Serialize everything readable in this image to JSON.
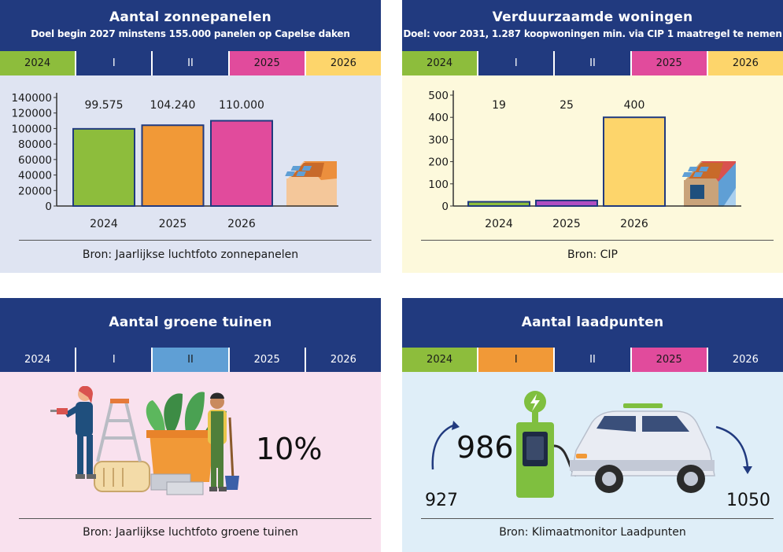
{
  "panels": {
    "solar": {
      "title": "Aantal zonnepanelen",
      "subtitle": "Doel begin 2027 minstens 155.000 panelen op Capelse daken",
      "timeline": [
        "2024",
        "I",
        "II",
        "2025",
        "2026"
      ],
      "source": "Bron: Jaarlijkse luchtfoto zonnepanelen"
    },
    "homes": {
      "title": "Verduurzaamde woningen",
      "subtitle": "Doel: voor 2031, 1.287 koopwoningen min. via CIP 1 maatregel te nemen",
      "timeline": [
        "2024",
        "I",
        "II",
        "2025",
        "2026"
      ],
      "source": "Bron: CIP"
    },
    "gardens": {
      "title": "Aantal groene tuinen",
      "timeline": [
        "2024",
        "I",
        "II",
        "2025",
        "2026"
      ],
      "value": "10%",
      "source": "Bron: Jaarlijkse luchtfoto groene tuinen"
    },
    "charging": {
      "title": "Aantal laadpunten",
      "timeline": [
        "2024",
        "I",
        "II",
        "2025",
        "2026"
      ],
      "previous": "927",
      "current": "986",
      "target": "1050",
      "source": "Bron: Klimaatmonitor Laadpunten"
    }
  },
  "colors": {
    "navy": "#213a7f",
    "green": "#8dbd3c",
    "orange": "#f19937",
    "pink": "#e14b9c",
    "yellow": "#fdd56b",
    "lightblue": "#5f9fd5"
  },
  "chart_data": [
    {
      "type": "bar",
      "title": "Aantal zonnepanelen",
      "categories": [
        "2024",
        "2025",
        "2026"
      ],
      "values": [
        99575,
        104240,
        110000
      ],
      "value_labels": [
        "99.575",
        "104.240",
        "110.000"
      ],
      "bar_colors": [
        "#8dbd3c",
        "#f19937",
        "#e14b9c"
      ],
      "yticks": [
        0,
        20000,
        40000,
        60000,
        80000,
        100000,
        120000,
        140000
      ],
      "ylim": [
        0,
        140000
      ],
      "xlabel": "",
      "ylabel": ""
    },
    {
      "type": "bar",
      "title": "Verduurzaamde woningen",
      "categories": [
        "2024",
        "2025",
        "2026"
      ],
      "values": [
        19,
        25,
        400
      ],
      "value_labels": [
        "19",
        "25",
        "400"
      ],
      "bar_colors": [
        "#8dbd3c",
        "#b04ec2",
        "#fdd56b"
      ],
      "yticks": [
        0,
        100,
        200,
        300,
        400,
        500
      ],
      "ylim": [
        0,
        500
      ],
      "xlabel": "",
      "ylabel": ""
    }
  ]
}
